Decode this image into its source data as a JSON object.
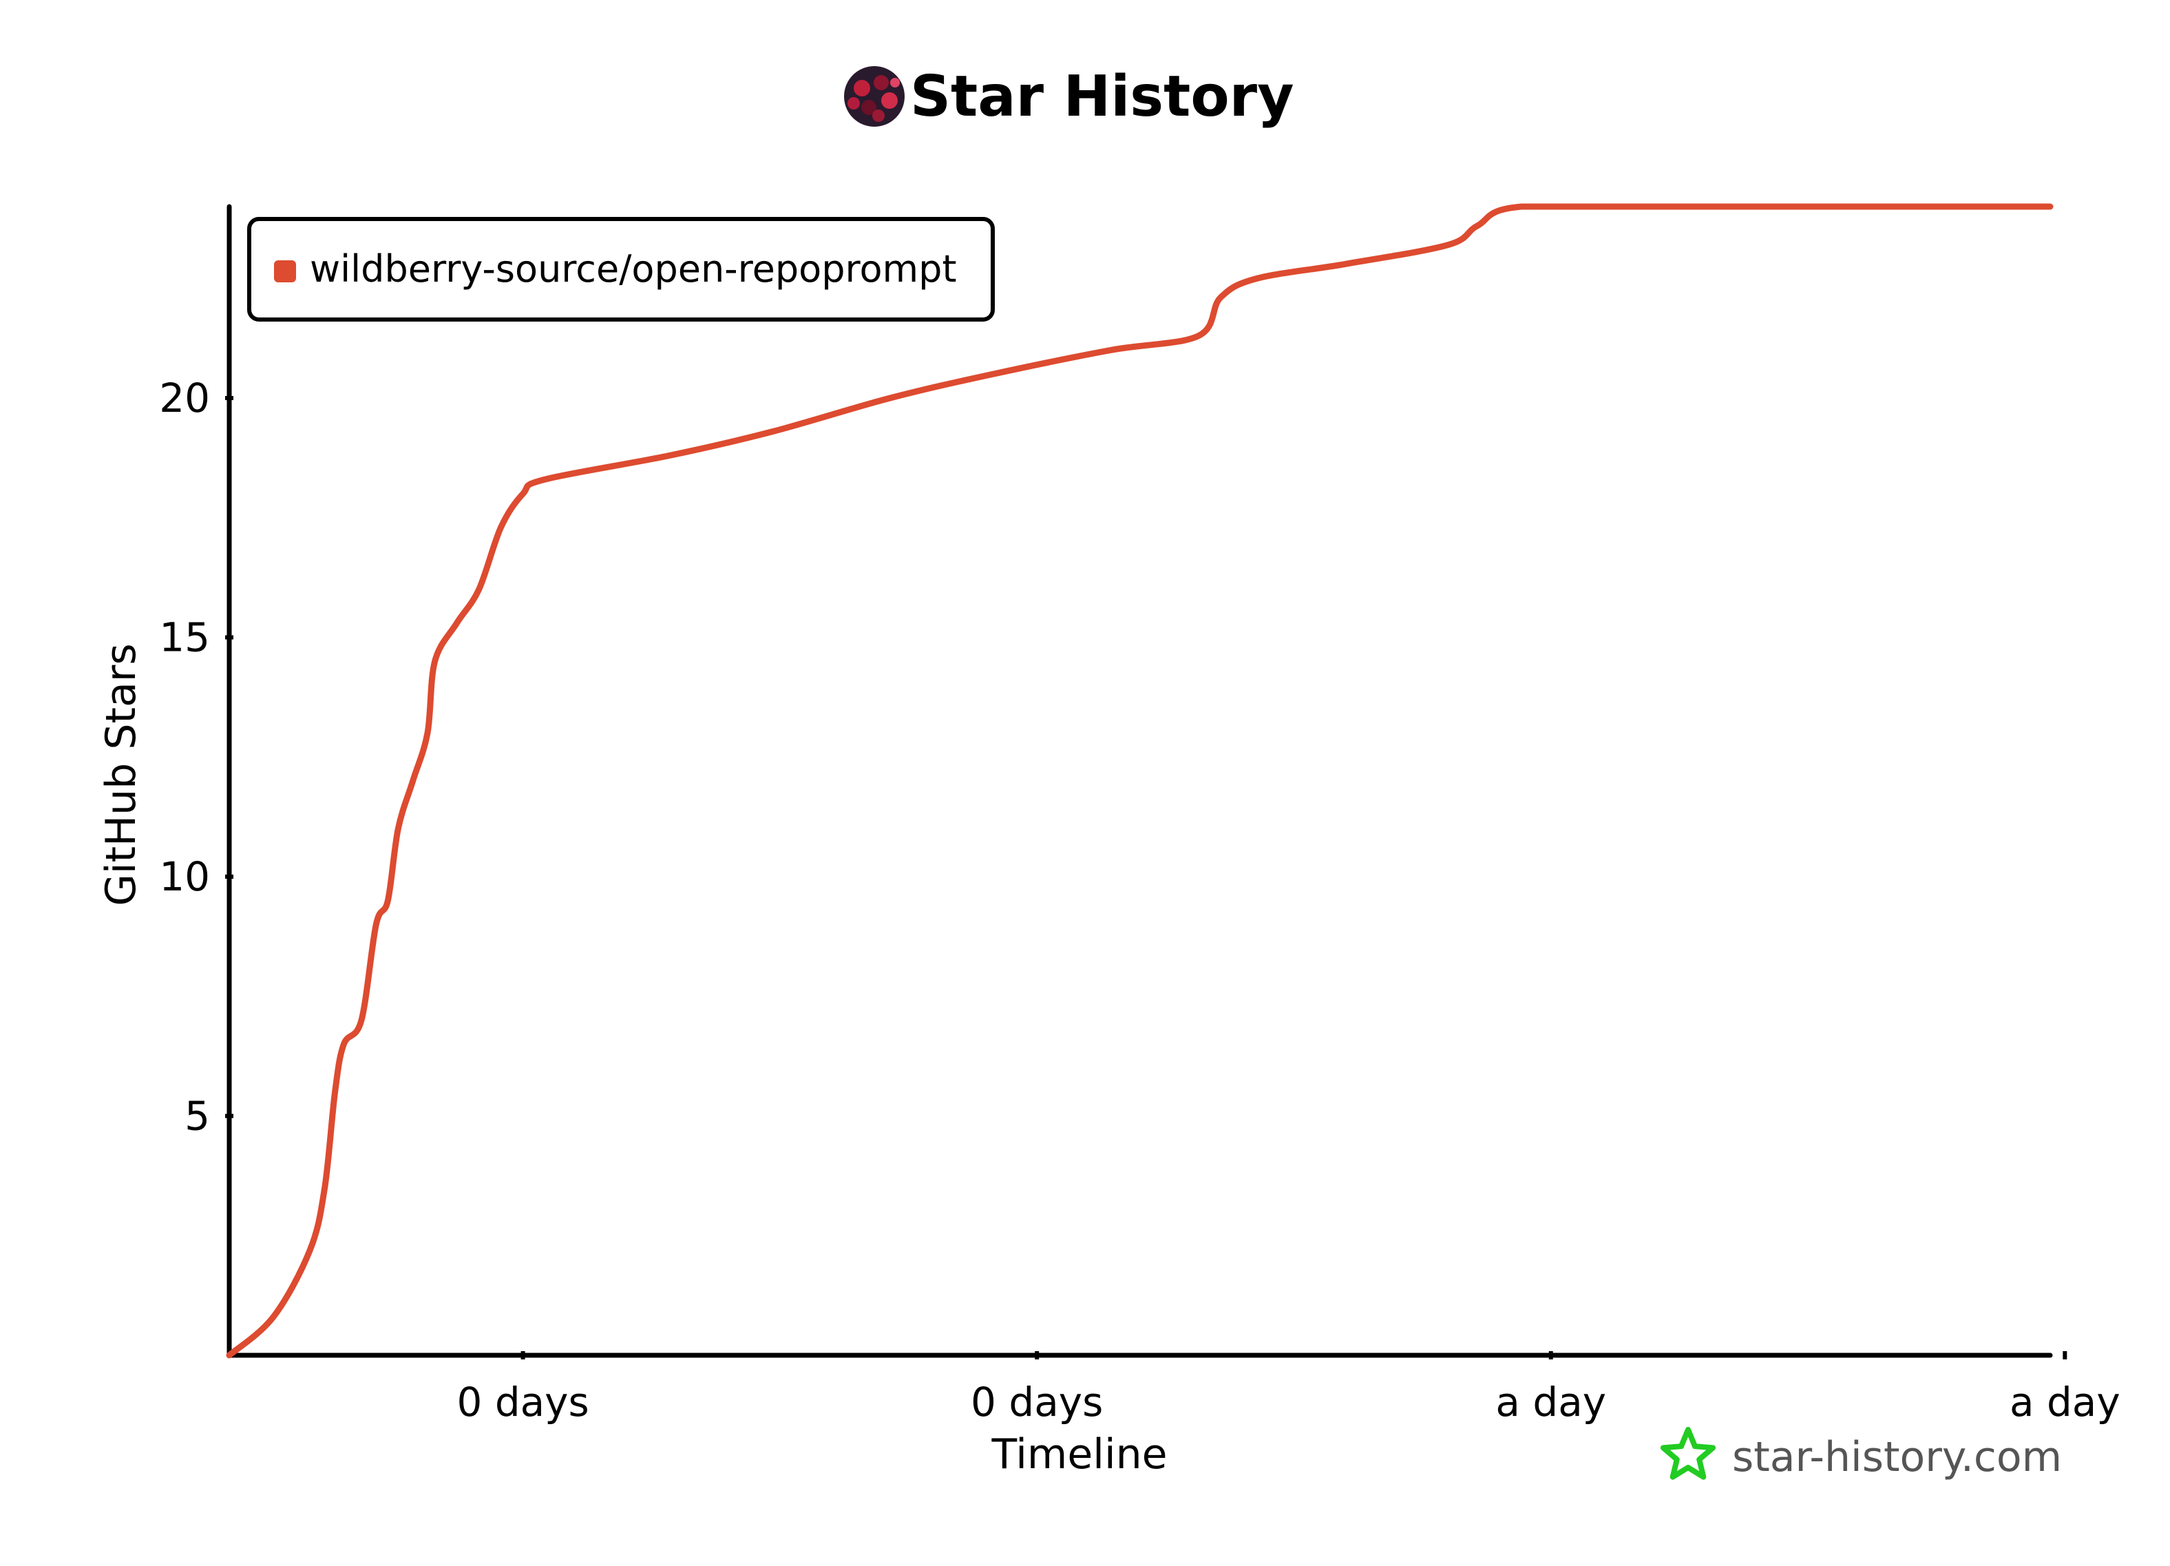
{
  "colors": {
    "series": "#dd4b30",
    "axis": "#000000",
    "watermark_icon": "#22cc22",
    "watermark_text": "#555555"
  },
  "header": {
    "logo_icon": "wildberry-avatar-icon",
    "title": "Star History"
  },
  "watermark": {
    "icon": "star-outline-icon",
    "text": "star-history.com"
  },
  "chart_data": {
    "type": "line",
    "title": "Star History",
    "xlabel": "Timeline",
    "ylabel": "GitHub Stars",
    "x_ticks": [
      "0 days",
      "0 days",
      "a day",
      "a day"
    ],
    "x_tick_positions": [
      0.2,
      0.55,
      0.9,
      1.25
    ],
    "y_ticks": [
      5,
      10,
      15,
      20
    ],
    "xlim": [
      0,
      1.24
    ],
    "ylim": [
      0,
      24
    ],
    "grid": false,
    "legend_position": "top-left",
    "series": [
      {
        "name": "wildberry-source/open-repoprompt",
        "x": [
          0,
          0.03,
          0.055,
          0.065,
          0.072,
          0.078,
          0.09,
          0.1,
          0.108,
          0.115,
          0.125,
          0.135,
          0.14,
          0.155,
          0.17,
          0.185,
          0.2,
          0.215,
          0.3,
          0.37,
          0.45,
          0.52,
          0.6,
          0.66,
          0.675,
          0.7,
          0.76,
          0.83,
          0.85,
          0.88,
          1.0,
          1.24
        ],
        "y": [
          0,
          0.8,
          2.2,
          3.5,
          5.5,
          6.5,
          7.0,
          9.0,
          9.5,
          11.0,
          12.0,
          13.0,
          14.5,
          15.3,
          16.0,
          17.3,
          18.0,
          18.3,
          18.8,
          19.3,
          20.0,
          20.5,
          21.0,
          21.3,
          22.1,
          22.5,
          22.8,
          23.2,
          23.6,
          24.0,
          24.0,
          24.0
        ]
      }
    ]
  }
}
